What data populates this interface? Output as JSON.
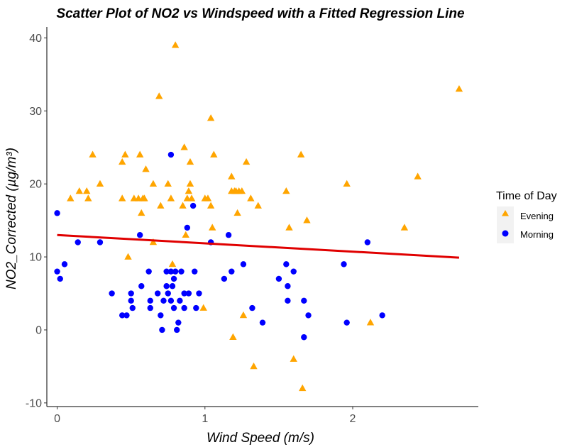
{
  "chart_data": {
    "type": "scatter",
    "title": "Scatter Plot of NO2 vs Windspeed with a Fitted Regression Line",
    "xlabel": "Wind Speed (m/s)",
    "ylabel": "NO2_Corrected (µg/m³)",
    "xlim": [
      -0.07,
      2.85
    ],
    "ylim": [
      -10.5,
      41.5
    ],
    "x_ticks": [
      0,
      1,
      2
    ],
    "y_ticks": [
      -10,
      0,
      10,
      20,
      30,
      40
    ],
    "grid": false,
    "legend": {
      "title": "Time of Day",
      "position": "right",
      "entries": [
        "Evening",
        "Morning"
      ]
    },
    "series": [
      {
        "name": "Evening",
        "color": "#FFA500",
        "marker": "triangle",
        "points": [
          [
            0.09,
            18
          ],
          [
            0.15,
            19
          ],
          [
            0.2,
            19
          ],
          [
            0.21,
            18
          ],
          [
            0.24,
            24
          ],
          [
            0.29,
            20
          ],
          [
            0.44,
            23
          ],
          [
            0.44,
            18
          ],
          [
            0.46,
            24
          ],
          [
            0.48,
            10
          ],
          [
            0.52,
            18
          ],
          [
            0.55,
            18
          ],
          [
            0.56,
            24
          ],
          [
            0.57,
            16
          ],
          [
            0.58,
            18
          ],
          [
            0.59,
            18
          ],
          [
            0.6,
            22
          ],
          [
            0.65,
            12
          ],
          [
            0.65,
            20
          ],
          [
            0.69,
            32
          ],
          [
            0.7,
            17
          ],
          [
            0.75,
            20
          ],
          [
            0.77,
            18
          ],
          [
            0.78,
            9
          ],
          [
            0.8,
            39
          ],
          [
            0.85,
            17
          ],
          [
            0.86,
            25
          ],
          [
            0.87,
            13
          ],
          [
            0.88,
            18
          ],
          [
            0.89,
            19
          ],
          [
            0.9,
            23
          ],
          [
            0.91,
            18
          ],
          [
            0.9,
            20
          ],
          [
            0.99,
            3
          ],
          [
            1.0,
            18
          ],
          [
            1.02,
            18
          ],
          [
            1.04,
            29
          ],
          [
            1.04,
            17
          ],
          [
            1.05,
            14
          ],
          [
            1.06,
            24
          ],
          [
            1.18,
            19
          ],
          [
            1.18,
            21
          ],
          [
            1.19,
            -1
          ],
          [
            1.2,
            19
          ],
          [
            1.21,
            19
          ],
          [
            1.22,
            16
          ],
          [
            1.23,
            19
          ],
          [
            1.25,
            19
          ],
          [
            1.26,
            2
          ],
          [
            1.28,
            23
          ],
          [
            1.31,
            18
          ],
          [
            1.33,
            -5
          ],
          [
            1.36,
            17
          ],
          [
            1.55,
            19
          ],
          [
            1.57,
            14
          ],
          [
            1.6,
            -4
          ],
          [
            1.65,
            24
          ],
          [
            1.66,
            -8
          ],
          [
            1.69,
            15
          ],
          [
            1.96,
            20
          ],
          [
            2.12,
            1
          ],
          [
            2.35,
            14
          ],
          [
            2.44,
            21
          ],
          [
            2.72,
            33
          ]
        ]
      },
      {
        "name": "Morning",
        "color": "#0000FF",
        "marker": "circle",
        "points": [
          [
            0.0,
            16
          ],
          [
            0.0,
            8
          ],
          [
            0.02,
            7
          ],
          [
            0.05,
            9
          ],
          [
            0.14,
            12
          ],
          [
            0.29,
            12
          ],
          [
            0.37,
            5
          ],
          [
            0.44,
            2
          ],
          [
            0.47,
            2
          ],
          [
            0.5,
            5
          ],
          [
            0.5,
            4
          ],
          [
            0.51,
            3
          ],
          [
            0.56,
            13
          ],
          [
            0.57,
            6
          ],
          [
            0.62,
            8
          ],
          [
            0.63,
            4
          ],
          [
            0.63,
            3
          ],
          [
            0.68,
            5
          ],
          [
            0.7,
            2
          ],
          [
            0.71,
            0
          ],
          [
            0.72,
            4
          ],
          [
            0.74,
            8
          ],
          [
            0.74,
            6
          ],
          [
            0.75,
            5
          ],
          [
            0.77,
            24
          ],
          [
            0.77,
            8
          ],
          [
            0.77,
            4
          ],
          [
            0.78,
            6
          ],
          [
            0.79,
            7
          ],
          [
            0.79,
            3
          ],
          [
            0.8,
            8
          ],
          [
            0.81,
            0
          ],
          [
            0.82,
            1
          ],
          [
            0.83,
            4
          ],
          [
            0.84,
            8
          ],
          [
            0.86,
            3
          ],
          [
            0.86,
            5
          ],
          [
            0.88,
            14
          ],
          [
            0.89,
            5
          ],
          [
            0.92,
            17
          ],
          [
            0.93,
            8
          ],
          [
            0.94,
            3
          ],
          [
            0.96,
            5
          ],
          [
            1.04,
            12
          ],
          [
            1.13,
            7
          ],
          [
            1.16,
            13
          ],
          [
            1.18,
            8
          ],
          [
            1.26,
            9
          ],
          [
            1.32,
            3
          ],
          [
            1.39,
            1
          ],
          [
            1.5,
            7
          ],
          [
            1.55,
            9
          ],
          [
            1.56,
            4
          ],
          [
            1.56,
            6
          ],
          [
            1.6,
            8
          ],
          [
            1.67,
            -1
          ],
          [
            1.67,
            4
          ],
          [
            1.7,
            2
          ],
          [
            1.94,
            9
          ],
          [
            1.96,
            1
          ],
          [
            2.1,
            12
          ],
          [
            2.2,
            2
          ]
        ]
      }
    ],
    "regression_line": {
      "color": "#E00000",
      "x": [
        0.0,
        2.72
      ],
      "y": [
        13.0,
        9.9
      ]
    }
  }
}
